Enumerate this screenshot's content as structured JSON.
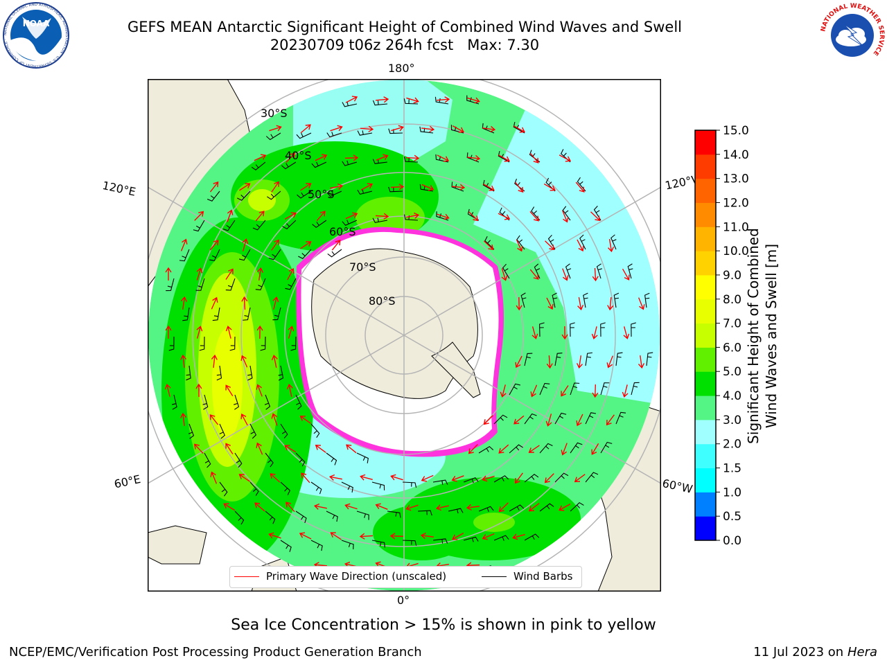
{
  "title": {
    "line1": "GEFS MEAN Antarctic Significant Height of Combined Wind Waves and Swell",
    "line2": "20230709 t06z 264h fcst   Max: 7.30"
  },
  "logos": {
    "noaa": "NOAA",
    "noaa_ring": "NATIONAL OCEANIC AND ATMOSPHERIC ADMINISTRATION · U.S. DEPARTMENT OF COMMERCE ·",
    "nws_ring": "NATIONAL WEATHER SERVICE"
  },
  "map": {
    "projection": "south-polar-stereographic",
    "longitude_labels": {
      "top": "180°",
      "bottom": "0°",
      "upper_left": "120°E",
      "upper_right": "120°W",
      "lower_left": "60°E",
      "lower_right": "60°W"
    },
    "latitude_labels": [
      "30°S",
      "40°S",
      "50°S",
      "60°S",
      "70°S",
      "80°S"
    ],
    "colors": {
      "land": "#efecdc",
      "ocean_default": "#55f585",
      "sea_ice": "#ff33dd",
      "grid": "#b4b4b4",
      "wave_arrow": "#ff0000",
      "wind_barb": "#000000"
    }
  },
  "legend": {
    "wave_direction": "Primary Wave Direction (unscaled)",
    "wind_barbs": "Wind Barbs"
  },
  "colorbar": {
    "label": "Significant Height of Combined Wind Waves and Swell [m]",
    "label_line1": "Significant Height of Combined",
    "label_line2": "Wind Waves and Swell [m]",
    "ticks": [
      "0.0",
      "0.5",
      "1.0",
      "1.5",
      "2.0",
      "3.0",
      "4.0",
      "5.0",
      "6.0",
      "7.0",
      "8.0",
      "9.0",
      "10.0",
      "11.0",
      "12.0",
      "13.0",
      "14.0",
      "15.0"
    ],
    "colors": [
      "#0000ff",
      "#0080ff",
      "#00ffff",
      "#40ffff",
      "#a0ffff",
      "#55f585",
      "#00e000",
      "#60f000",
      "#c8ff00",
      "#e8ff00",
      "#ffff00",
      "#ffd200",
      "#ffb400",
      "#ff8c00",
      "#ff6400",
      "#ff3c00",
      "#ff0000"
    ]
  },
  "footnote": "Sea Ice Concentration > 15% is shown in pink to yellow",
  "footer": {
    "left": "NCEP/EMC/Verification Post Processing Product Generation Branch",
    "right_date": "11 Jul 2023 on",
    "right_host": "Hera"
  }
}
